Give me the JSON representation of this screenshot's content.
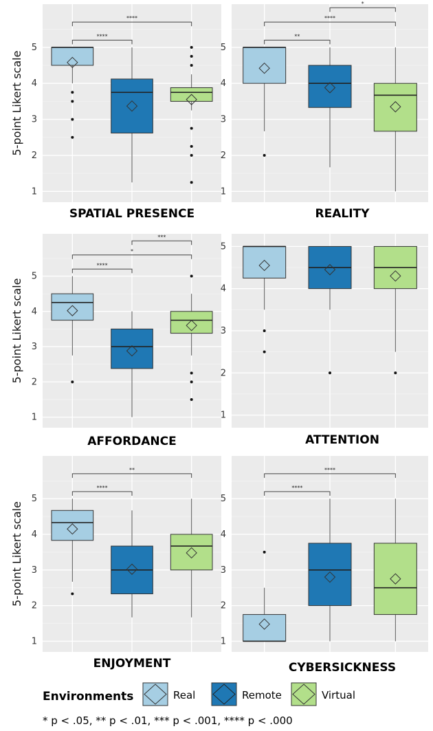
{
  "figure": {
    "ylabel": "5-point Likert scale",
    "legend": {
      "title": "Environments",
      "items": [
        {
          "label": "Real",
          "color": "#a6cee3"
        },
        {
          "label": "Remote",
          "color": "#1f78b4"
        },
        {
          "label": "Virtual",
          "color": "#b2df8a"
        }
      ]
    },
    "footnote": "* p < .05, ** p < .01, *** p < .001, **** p < .000"
  },
  "chart_data": [
    {
      "type": "box",
      "title": "SPATIAL PRESENCE",
      "ylabel": "5-point Likert scale",
      "ylim": [
        0.7,
        6.2
      ],
      "yticks": [
        1,
        2,
        3,
        4,
        5
      ],
      "grid": true,
      "series": [
        {
          "name": "Real",
          "color": "#a6cee3",
          "min": 4.0,
          "q1": 4.5,
          "median": 5.0,
          "q3": 5.0,
          "max": 5.0,
          "mean": 4.58,
          "outliers": [
            3.75,
            3.5,
            3.0,
            2.5
          ]
        },
        {
          "name": "Remote",
          "color": "#1f78b4",
          "min": 1.25,
          "q1": 2.62,
          "median": 3.75,
          "q3": 4.12,
          "max": 5.0,
          "mean": 3.37,
          "outliers": []
        },
        {
          "name": "Virtual",
          "color": "#b2df8a",
          "min": 3.25,
          "q1": 3.5,
          "median": 3.75,
          "q3": 3.88,
          "max": 4.25,
          "mean": 3.55,
          "outliers": [
            5.0,
            4.75,
            4.5,
            2.75,
            2.25,
            2.0,
            1.25
          ]
        }
      ],
      "significance": [
        {
          "from": "Real",
          "to": "Remote",
          "label": "****",
          "y": 5.2
        },
        {
          "from": "Real",
          "to": "Virtual",
          "label": "****",
          "y": 5.7
        }
      ]
    },
    {
      "type": "box",
      "title": "REALITY",
      "ylabel": "",
      "ylim": [
        0.7,
        6.2
      ],
      "yticks": [
        1,
        2,
        3,
        4,
        5
      ],
      "grid": true,
      "series": [
        {
          "name": "Real",
          "color": "#a6cee3",
          "min": 2.67,
          "q1": 4.0,
          "median": 5.0,
          "q3": 5.0,
          "max": 5.0,
          "mean": 4.42,
          "outliers": [
            2.0
          ]
        },
        {
          "name": "Remote",
          "color": "#1f78b4",
          "min": 1.67,
          "q1": 3.33,
          "median": 4.0,
          "q3": 4.5,
          "max": 5.0,
          "mean": 3.88,
          "outliers": []
        },
        {
          "name": "Virtual",
          "color": "#b2df8a",
          "min": 1.0,
          "q1": 2.67,
          "median": 3.67,
          "q3": 4.0,
          "max": 5.0,
          "mean": 3.35,
          "outliers": []
        }
      ],
      "significance": [
        {
          "from": "Real",
          "to": "Remote",
          "label": "**",
          "y": 5.2
        },
        {
          "from": "Real",
          "to": "Virtual",
          "label": "****",
          "y": 5.7
        },
        {
          "from": "Remote",
          "to": "Virtual",
          "label": "*",
          "y": 6.1
        }
      ]
    },
    {
      "type": "box",
      "title": "AFFORDANCE",
      "ylabel": "5-point Likert scale",
      "ylim": [
        0.7,
        6.2
      ],
      "yticks": [
        1,
        2,
        3,
        4,
        5
      ],
      "grid": true,
      "series": [
        {
          "name": "Real",
          "color": "#a6cee3",
          "min": 2.75,
          "q1": 3.75,
          "median": 4.25,
          "q3": 4.5,
          "max": 5.0,
          "mean": 4.02,
          "outliers": [
            2.0
          ]
        },
        {
          "name": "Remote",
          "color": "#1f78b4",
          "min": 1.0,
          "q1": 2.38,
          "median": 3.0,
          "q3": 3.5,
          "max": 4.0,
          "mean": 2.88,
          "outliers": []
        },
        {
          "name": "Virtual",
          "color": "#b2df8a",
          "min": 2.75,
          "q1": 3.38,
          "median": 3.75,
          "q3": 4.0,
          "max": 4.5,
          "mean": 3.6,
          "outliers": [
            5.0,
            2.25,
            2.0,
            1.5
          ]
        }
      ],
      "significance": [
        {
          "from": "Real",
          "to": "Remote",
          "label": "****",
          "y": 5.2
        },
        {
          "from": "Real",
          "to": "Virtual",
          "label": "*",
          "y": 5.6
        },
        {
          "from": "Remote",
          "to": "Virtual",
          "label": "***",
          "y": 6.0
        }
      ]
    },
    {
      "type": "box",
      "title": "ATTENTION",
      "ylabel": "",
      "ylim": [
        0.7,
        5.3
      ],
      "yticks": [
        1,
        2,
        3,
        4,
        5
      ],
      "grid": true,
      "series": [
        {
          "name": "Real",
          "color": "#a6cee3",
          "min": 3.5,
          "q1": 4.25,
          "median": 5.0,
          "q3": 5.0,
          "max": 5.0,
          "mean": 4.55,
          "outliers": [
            3.0,
            2.5
          ]
        },
        {
          "name": "Remote",
          "color": "#1f78b4",
          "min": 3.5,
          "q1": 4.0,
          "median": 4.5,
          "q3": 5.0,
          "max": 5.0,
          "mean": 4.45,
          "outliers": [
            2.0
          ]
        },
        {
          "name": "Virtual",
          "color": "#b2df8a",
          "min": 2.5,
          "q1": 4.0,
          "median": 4.5,
          "q3": 5.0,
          "max": 5.0,
          "mean": 4.3,
          "outliers": [
            2.0
          ]
        }
      ],
      "significance": []
    },
    {
      "type": "box",
      "title": "ENJOYMENT",
      "ylabel": "5-point Likert scale",
      "ylim": [
        0.7,
        6.2
      ],
      "yticks": [
        1,
        2,
        3,
        4,
        5
      ],
      "grid": true,
      "series": [
        {
          "name": "Real",
          "color": "#a6cee3",
          "min": 2.67,
          "q1": 3.83,
          "median": 4.33,
          "q3": 4.67,
          "max": 5.0,
          "mean": 4.15,
          "outliers": [
            2.33
          ]
        },
        {
          "name": "Remote",
          "color": "#1f78b4",
          "min": 1.67,
          "q1": 2.33,
          "median": 3.0,
          "q3": 3.67,
          "max": 4.67,
          "mean": 3.02,
          "outliers": []
        },
        {
          "name": "Virtual",
          "color": "#b2df8a",
          "min": 1.67,
          "q1": 3.0,
          "median": 3.67,
          "q3": 4.0,
          "max": 5.0,
          "mean": 3.48,
          "outliers": []
        }
      ],
      "significance": [
        {
          "from": "Real",
          "to": "Remote",
          "label": "****",
          "y": 5.2
        },
        {
          "from": "Real",
          "to": "Virtual",
          "label": "**",
          "y": 5.7
        }
      ]
    },
    {
      "type": "box",
      "title": "CYBERSICKNESS",
      "ylabel": "",
      "ylim": [
        0.7,
        6.2
      ],
      "yticks": [
        1,
        2,
        3,
        4,
        5
      ],
      "grid": true,
      "series": [
        {
          "name": "Real",
          "color": "#a6cee3",
          "min": 1.0,
          "q1": 1.0,
          "median": 1.0,
          "q3": 1.75,
          "max": 2.5,
          "mean": 1.48,
          "outliers": [
            3.5
          ]
        },
        {
          "name": "Remote",
          "color": "#1f78b4",
          "min": 1.0,
          "q1": 2.0,
          "median": 3.0,
          "q3": 3.75,
          "max": 5.0,
          "mean": 2.8,
          "outliers": []
        },
        {
          "name": "Virtual",
          "color": "#b2df8a",
          "min": 1.0,
          "q1": 1.75,
          "median": 2.5,
          "q3": 3.75,
          "max": 5.0,
          "mean": 2.75,
          "outliers": []
        }
      ],
      "significance": [
        {
          "from": "Real",
          "to": "Remote",
          "label": "****",
          "y": 5.2
        },
        {
          "from": "Real",
          "to": "Virtual",
          "label": "****",
          "y": 5.7
        }
      ]
    }
  ]
}
